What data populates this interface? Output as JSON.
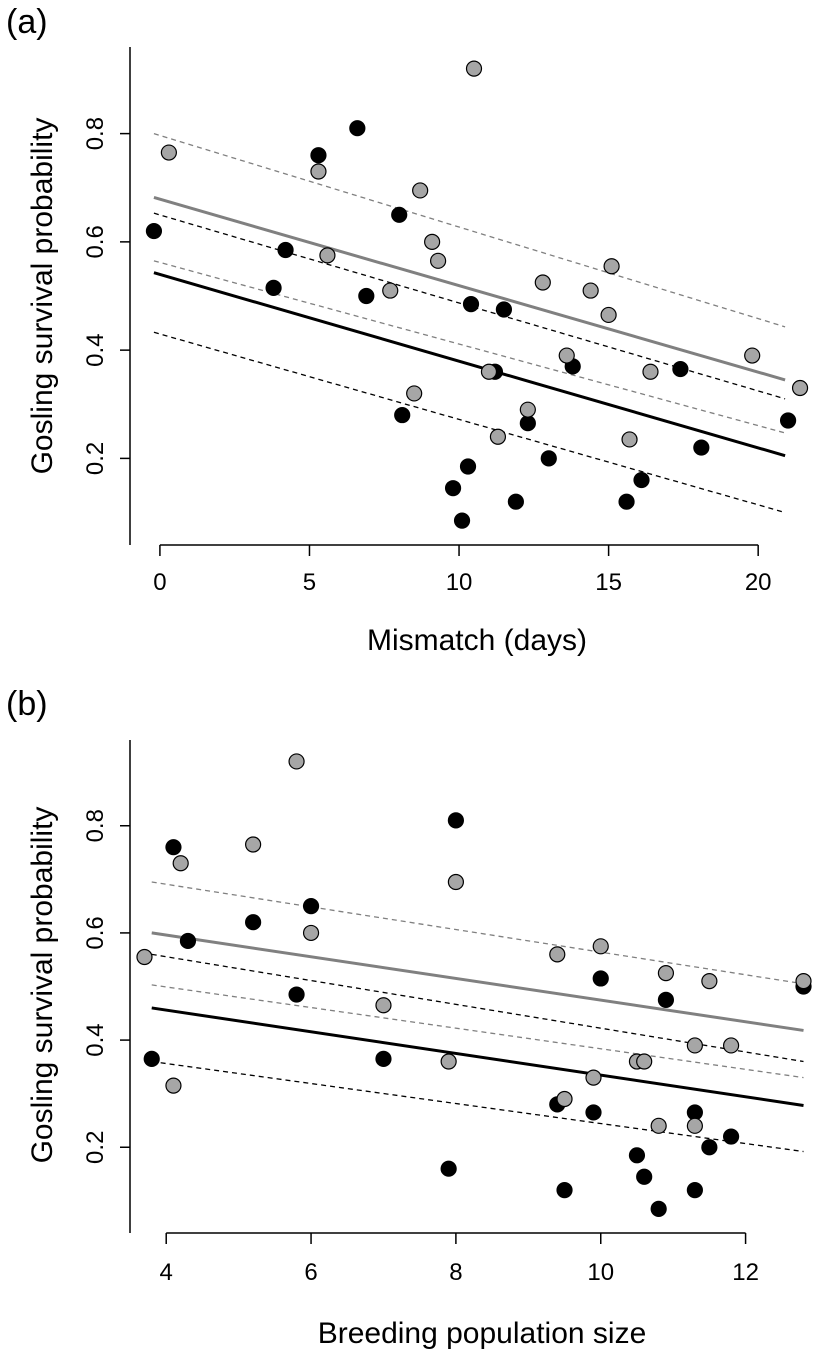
{
  "chart_data": [
    {
      "type": "scatter",
      "panel_label": "(a)",
      "xlabel": "Mismatch (days)",
      "ylabel": "Gosling survival probability",
      "xlim": [
        -1,
        22
      ],
      "ylim": [
        0.04,
        0.96
      ],
      "xticks": [
        "0",
        "5",
        "10",
        "15",
        "20"
      ],
      "yticks": [
        "0.2",
        "0.4",
        "0.6",
        "0.8"
      ],
      "colors": {
        "black_series": "#000000",
        "gray_series": "#a6a6a6",
        "gray_line": "#808080"
      },
      "series": [
        {
          "color": "black",
          "points": [
            [
              -0.2,
              0.62
            ],
            [
              3.8,
              0.515
            ],
            [
              4.2,
              0.585
            ],
            [
              5.3,
              0.76
            ],
            [
              6.6,
              0.81
            ],
            [
              6.9,
              0.5
            ],
            [
              8.0,
              0.65
            ],
            [
              8.1,
              0.28
            ],
            [
              9.8,
              0.145
            ],
            [
              10.1,
              0.085
            ],
            [
              10.3,
              0.185
            ],
            [
              10.4,
              0.485
            ],
            [
              11.2,
              0.36
            ],
            [
              11.5,
              0.475
            ],
            [
              11.9,
              0.12
            ],
            [
              12.3,
              0.265
            ],
            [
              13.0,
              0.2
            ],
            [
              13.8,
              0.37
            ],
            [
              15.6,
              0.12
            ],
            [
              16.1,
              0.16
            ],
            [
              17.4,
              0.365
            ],
            [
              18.1,
              0.22
            ],
            [
              21.0,
              0.27
            ]
          ],
          "fit": [
            [
              -0.2,
              0.543
            ],
            [
              20.9,
              0.205
            ]
          ],
          "ci_lower": [
            [
              -0.2,
              0.433
            ],
            [
              20.9,
              0.1
            ]
          ],
          "ci_upper": [
            [
              -0.2,
              0.653
            ],
            [
              20.9,
              0.31
            ]
          ]
        },
        {
          "color": "gray",
          "points": [
            [
              0.3,
              0.765
            ],
            [
              5.3,
              0.73
            ],
            [
              5.6,
              0.575
            ],
            [
              7.7,
              0.51
            ],
            [
              8.5,
              0.32
            ],
            [
              8.7,
              0.695
            ],
            [
              9.1,
              0.6
            ],
            [
              9.3,
              0.565
            ],
            [
              10.5,
              0.92
            ],
            [
              11.0,
              0.36
            ],
            [
              11.3,
              0.24
            ],
            [
              12.3,
              0.29
            ],
            [
              12.8,
              0.525
            ],
            [
              13.6,
              0.39
            ],
            [
              14.4,
              0.51
            ],
            [
              15.0,
              0.465
            ],
            [
              15.1,
              0.555
            ],
            [
              15.7,
              0.235
            ],
            [
              16.4,
              0.36
            ],
            [
              19.8,
              0.39
            ],
            [
              21.4,
              0.33
            ]
          ],
          "fit": [
            [
              -0.2,
              0.682
            ],
            [
              20.9,
              0.345
            ]
          ],
          "ci_lower": [
            [
              -0.2,
              0.565
            ],
            [
              20.9,
              0.247
            ]
          ],
          "ci_upper": [
            [
              -0.2,
              0.8
            ],
            [
              20.9,
              0.443
            ]
          ]
        }
      ]
    },
    {
      "type": "scatter",
      "panel_label": "(b)",
      "xlabel": "Breeding population size",
      "ylabel": "Gosling survival probability",
      "xlim": [
        3.5,
        13.0
      ],
      "ylim": [
        0.04,
        0.96
      ],
      "xticks": [
        "4",
        "6",
        "8",
        "10",
        "12"
      ],
      "yticks": [
        "0.2",
        "0.4",
        "0.6",
        "0.8"
      ],
      "colors": {
        "black_series": "#000000",
        "gray_series": "#a6a6a6",
        "gray_line": "#808080"
      },
      "series": [
        {
          "color": "black",
          "points": [
            [
              3.8,
              0.365
            ],
            [
              4.1,
              0.76
            ],
            [
              4.3,
              0.585
            ],
            [
              5.2,
              0.62
            ],
            [
              5.8,
              0.485
            ],
            [
              6.0,
              0.65
            ],
            [
              7.0,
              0.365
            ],
            [
              7.9,
              0.16
            ],
            [
              8.0,
              0.81
            ],
            [
              9.4,
              0.28
            ],
            [
              9.5,
              0.12
            ],
            [
              9.9,
              0.265
            ],
            [
              10.0,
              0.515
            ],
            [
              10.5,
              0.185
            ],
            [
              10.6,
              0.145
            ],
            [
              10.8,
              0.085
            ],
            [
              10.9,
              0.475
            ],
            [
              11.3,
              0.12
            ],
            [
              11.3,
              0.265
            ],
            [
              11.5,
              0.2
            ],
            [
              11.8,
              0.22
            ],
            [
              12.8,
              0.5
            ]
          ],
          "fit": [
            [
              3.8,
              0.46
            ],
            [
              12.8,
              0.278
            ]
          ],
          "ci_lower": [
            [
              3.8,
              0.36
            ],
            [
              12.8,
              0.192
            ]
          ],
          "ci_upper": [
            [
              3.8,
              0.56
            ],
            [
              12.8,
              0.36
            ]
          ]
        },
        {
          "color": "gray",
          "points": [
            [
              3.7,
              0.555
            ],
            [
              4.1,
              0.315
            ],
            [
              4.2,
              0.73
            ],
            [
              5.2,
              0.765
            ],
            [
              5.8,
              0.92
            ],
            [
              6.0,
              0.6
            ],
            [
              7.0,
              0.465
            ],
            [
              7.9,
              0.36
            ],
            [
              8.0,
              0.695
            ],
            [
              9.4,
              0.56
            ],
            [
              9.5,
              0.29
            ],
            [
              9.9,
              0.33
            ],
            [
              10.0,
              0.575
            ],
            [
              10.5,
              0.36
            ],
            [
              10.6,
              0.36
            ],
            [
              10.8,
              0.24
            ],
            [
              10.9,
              0.525
            ],
            [
              11.3,
              0.24
            ],
            [
              11.3,
              0.39
            ],
            [
              11.5,
              0.51
            ],
            [
              11.8,
              0.39
            ],
            [
              12.8,
              0.51
            ]
          ],
          "fit": [
            [
              3.8,
              0.6
            ],
            [
              12.8,
              0.418
            ]
          ],
          "ci_lower": [
            [
              3.8,
              0.503
            ],
            [
              12.8,
              0.33
            ]
          ],
          "ci_upper": [
            [
              3.8,
              0.695
            ],
            [
              12.8,
              0.505
            ]
          ]
        }
      ]
    }
  ]
}
